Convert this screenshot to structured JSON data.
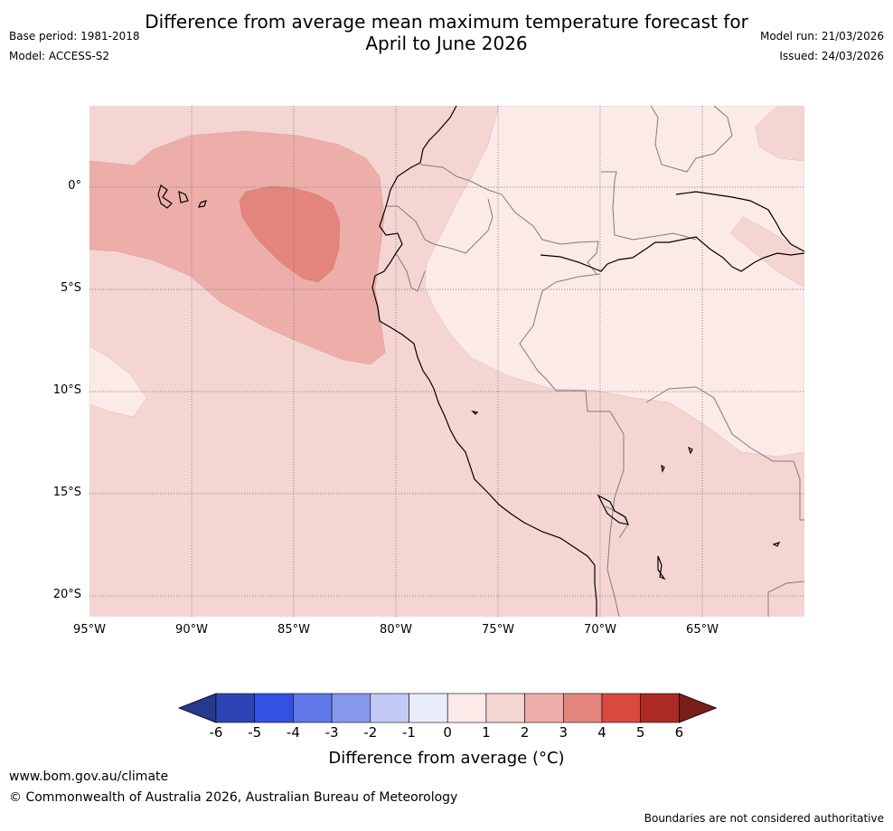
{
  "title": "Difference from average mean maximum temperature forecast for\nApril to June 2026",
  "meta": {
    "base_period": "Base period: 1981-2018",
    "model": "Model: ACCESS-S2",
    "model_run": "Model run: 21/03/2026",
    "issued": "Issued: 24/03/2026"
  },
  "map": {
    "lat_labels": [
      "0°",
      "5°S",
      "10°S",
      "15°S",
      "20°S"
    ],
    "lon_labels": [
      "95°W",
      "90°W",
      "85°W",
      "80°W",
      "75°W",
      "70°W",
      "65°W"
    ]
  },
  "colorbar": {
    "labels": [
      "-6",
      "-5",
      "-4",
      "-3",
      "-2",
      "-1",
      "0",
      "1",
      "2",
      "3",
      "4",
      "5",
      "6"
    ],
    "colors": [
      "#27388f",
      "#2c44b4",
      "#3352e3",
      "#5f77e8",
      "#8698ed",
      "#c1c9f4",
      "#e9ecfb",
      "#fbeae8",
      "#f5d5d2",
      "#edaeaa",
      "#e4857d",
      "#d84a3f",
      "#ad2a24",
      "#7a1e1a"
    ],
    "title": "Difference from average (°C)"
  },
  "footer": {
    "url": "www.bom.gov.au/climate",
    "copyright": "© Commonwealth of Australia 2026, Australian Bureau of Meteorology",
    "note": "Boundaries are not considered authoritative"
  }
}
